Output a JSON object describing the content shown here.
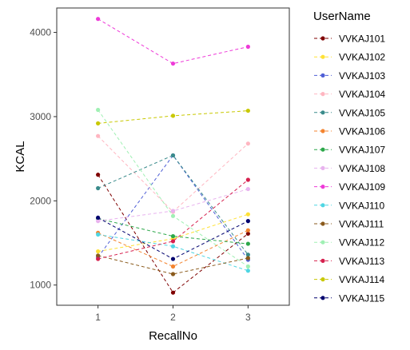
{
  "chart_data": {
    "type": "line",
    "xlabel": "RecallNo",
    "ylabel": "KCAL",
    "x": [
      1,
      2,
      3
    ],
    "x_ticks": [
      "1",
      "2",
      "3"
    ],
    "xlim": [
      0.45,
      3.55
    ],
    "ylim": [
      760,
      4290
    ],
    "y_ticks": [
      1000,
      2000,
      3000,
      4000
    ],
    "legend_title": "UserName",
    "legend_position": "right",
    "grid": false,
    "line_style": "dashed",
    "series": [
      {
        "name": "VVKAJ101",
        "color": "#7f0000",
        "values": [
          2310,
          910,
          1610
        ]
      },
      {
        "name": "VVKAJ102",
        "color": "#ffe135",
        "values": [
          1400,
          1550,
          1840
        ]
      },
      {
        "name": "VVKAJ103",
        "color": "#4f5fd6",
        "values": [
          1330,
          2540,
          1300
        ]
      },
      {
        "name": "VVKAJ104",
        "color": "#ffb6c1",
        "values": [
          2770,
          1870,
          2680
        ]
      },
      {
        "name": "VVKAJ105",
        "color": "#3a8b8b",
        "values": [
          2150,
          2540,
          1360
        ]
      },
      {
        "name": "VVKAJ106",
        "color": "#f4842f",
        "values": [
          1620,
          1220,
          1650
        ]
      },
      {
        "name": "VVKAJ107",
        "color": "#2ca84a",
        "values": [
          1790,
          1580,
          1490
        ]
      },
      {
        "name": "VVKAJ108",
        "color": "#e8b3ee",
        "values": [
          1760,
          1880,
          2140
        ]
      },
      {
        "name": "VVKAJ109",
        "color": "#ee3ad8",
        "values": [
          4160,
          3630,
          3830
        ]
      },
      {
        "name": "VVKAJ110",
        "color": "#4fd6e3",
        "values": [
          1600,
          1460,
          1170
        ]
      },
      {
        "name": "VVKAJ111",
        "color": "#8a5a1c",
        "values": [
          1350,
          1130,
          1320
        ]
      },
      {
        "name": "VVKAJ112",
        "color": "#a0f0b4",
        "values": [
          3080,
          1820,
          1220
        ]
      },
      {
        "name": "VVKAJ113",
        "color": "#d6204e",
        "values": [
          1310,
          1520,
          2250
        ]
      },
      {
        "name": "VVKAJ114",
        "color": "#c8c800",
        "values": [
          2920,
          3010,
          3070
        ]
      },
      {
        "name": "VVKAJ115",
        "color": "#00006e",
        "values": [
          1800,
          1310,
          1760
        ]
      }
    ]
  }
}
